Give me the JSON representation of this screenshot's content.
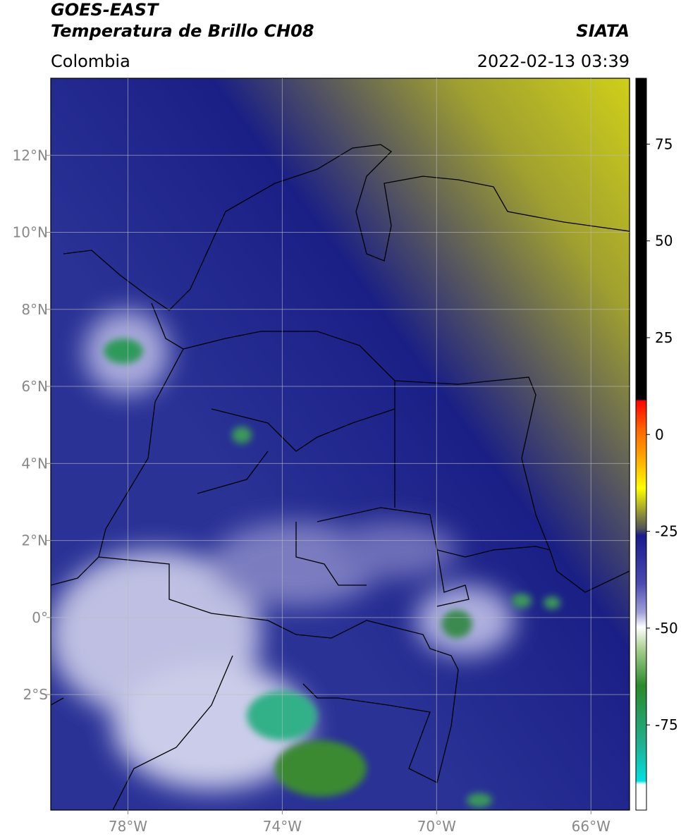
{
  "header": {
    "title_line1": "GOES-EAST",
    "title_line2": "Temperatura de Brillo CH08",
    "subtitle": "Colombia",
    "source": "SIATA",
    "timestamp": "2022-02-13 03:39"
  },
  "map": {
    "xlim": [
      -80,
      -65
    ],
    "ylim": [
      -5,
      14
    ],
    "xticks": [
      {
        "value": -78,
        "label": "78°W"
      },
      {
        "value": -74,
        "label": "74°W"
      },
      {
        "value": -70,
        "label": "70°W"
      },
      {
        "value": -66,
        "label": "66°W"
      }
    ],
    "yticks": [
      {
        "value": 12,
        "label": "12°N"
      },
      {
        "value": 10,
        "label": "10°N"
      },
      {
        "value": 8,
        "label": "8°N"
      },
      {
        "value": 6,
        "label": "6°N"
      },
      {
        "value": 4,
        "label": "4°N"
      },
      {
        "value": 2,
        "label": "2°N"
      },
      {
        "value": 0,
        "label": "0°"
      },
      {
        "value": -2,
        "label": "2°S"
      }
    ]
  },
  "colorbar": {
    "lim": [
      -97,
      92
    ],
    "ticks": [
      75,
      50,
      25,
      0,
      -25,
      -50,
      -75
    ]
  }
}
